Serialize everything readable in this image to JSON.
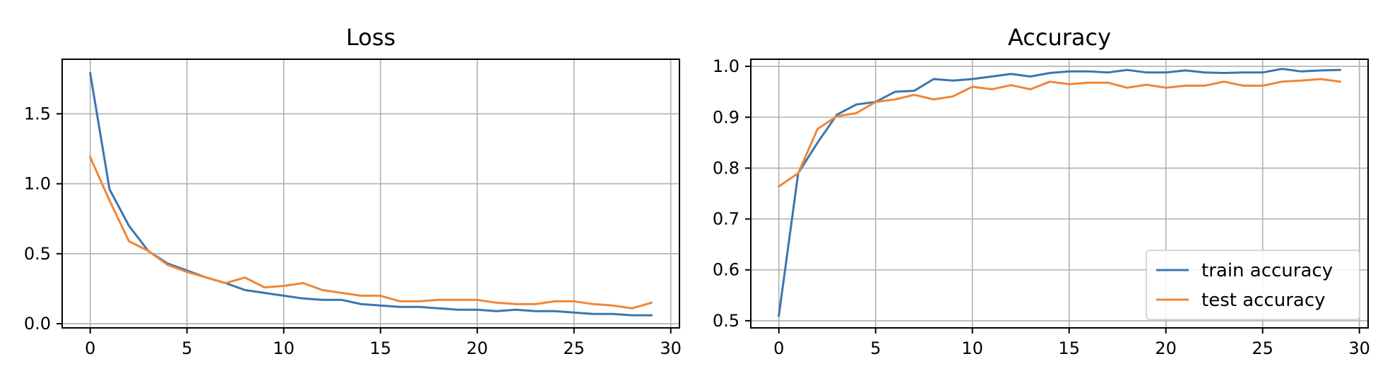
{
  "chart_data": [
    {
      "type": "line",
      "title": "Loss",
      "xlabel": "",
      "ylabel": "",
      "xlim": [
        -1.45,
        30.45
      ],
      "ylim": [
        -0.03,
        1.89
      ],
      "xticks": [
        0,
        5,
        10,
        15,
        20,
        25,
        30
      ],
      "xtick_labels": [
        "0",
        "5",
        "10",
        "15",
        "20",
        "25",
        "30"
      ],
      "yticks": [
        0.0,
        0.5,
        1.0,
        1.5
      ],
      "ytick_labels": [
        "0.0",
        "0.5",
        "1.0",
        "1.5"
      ],
      "grid": true,
      "x": [
        0,
        1,
        2,
        3,
        4,
        5,
        6,
        7,
        8,
        9,
        10,
        11,
        12,
        13,
        14,
        15,
        16,
        17,
        18,
        19,
        20,
        21,
        22,
        23,
        24,
        25,
        26,
        27,
        28,
        29
      ],
      "series": [
        {
          "color": "#3b75af",
          "values": [
            1.79,
            0.96,
            0.7,
            0.52,
            0.43,
            0.38,
            0.33,
            0.29,
            0.24,
            0.22,
            0.2,
            0.18,
            0.17,
            0.17,
            0.14,
            0.13,
            0.12,
            0.12,
            0.11,
            0.1,
            0.1,
            0.09,
            0.1,
            0.09,
            0.09,
            0.08,
            0.07,
            0.07,
            0.06,
            0.06
          ]
        },
        {
          "color": "#ef8636",
          "values": [
            1.19,
            0.88,
            0.59,
            0.52,
            0.42,
            0.37,
            0.33,
            0.29,
            0.33,
            0.26,
            0.27,
            0.29,
            0.24,
            0.22,
            0.2,
            0.2,
            0.16,
            0.16,
            0.17,
            0.17,
            0.17,
            0.15,
            0.14,
            0.14,
            0.16,
            0.16,
            0.14,
            0.13,
            0.11,
            0.15
          ]
        }
      ]
    },
    {
      "type": "line",
      "title": "Accuracy",
      "xlabel": "",
      "ylabel": "",
      "xlim": [
        -1.45,
        30.45
      ],
      "ylim": [
        0.486,
        1.014
      ],
      "xticks": [
        0,
        5,
        10,
        15,
        20,
        25,
        30
      ],
      "xtick_labels": [
        "0",
        "5",
        "10",
        "15",
        "20",
        "25",
        "30"
      ],
      "yticks": [
        0.5,
        0.6,
        0.7,
        0.8,
        0.9,
        1.0
      ],
      "ytick_labels": [
        "0.5",
        "0.6",
        "0.7",
        "0.8",
        "0.9",
        "1.0"
      ],
      "grid": true,
      "legend_position": "lower-right",
      "x": [
        0,
        1,
        2,
        3,
        4,
        5,
        6,
        7,
        8,
        9,
        10,
        11,
        12,
        13,
        14,
        15,
        16,
        17,
        18,
        19,
        20,
        21,
        22,
        23,
        24,
        25,
        26,
        27,
        28,
        29
      ],
      "series": [
        {
          "name": "train accuracy",
          "color": "#3b75af",
          "values": [
            0.51,
            0.79,
            0.85,
            0.905,
            0.925,
            0.93,
            0.95,
            0.952,
            0.975,
            0.972,
            0.975,
            0.98,
            0.985,
            0.98,
            0.987,
            0.99,
            0.99,
            0.988,
            0.993,
            0.988,
            0.988,
            0.992,
            0.988,
            0.987,
            0.988,
            0.988,
            0.995,
            0.99,
            0.992,
            0.993
          ]
        },
        {
          "name": "test accuracy",
          "color": "#ef8636",
          "values": [
            0.764,
            0.79,
            0.877,
            0.902,
            0.908,
            0.93,
            0.935,
            0.944,
            0.935,
            0.941,
            0.96,
            0.955,
            0.963,
            0.955,
            0.97,
            0.965,
            0.968,
            0.968,
            0.958,
            0.964,
            0.958,
            0.962,
            0.962,
            0.97,
            0.962,
            0.962,
            0.97,
            0.972,
            0.975,
            0.97
          ]
        }
      ]
    }
  ]
}
